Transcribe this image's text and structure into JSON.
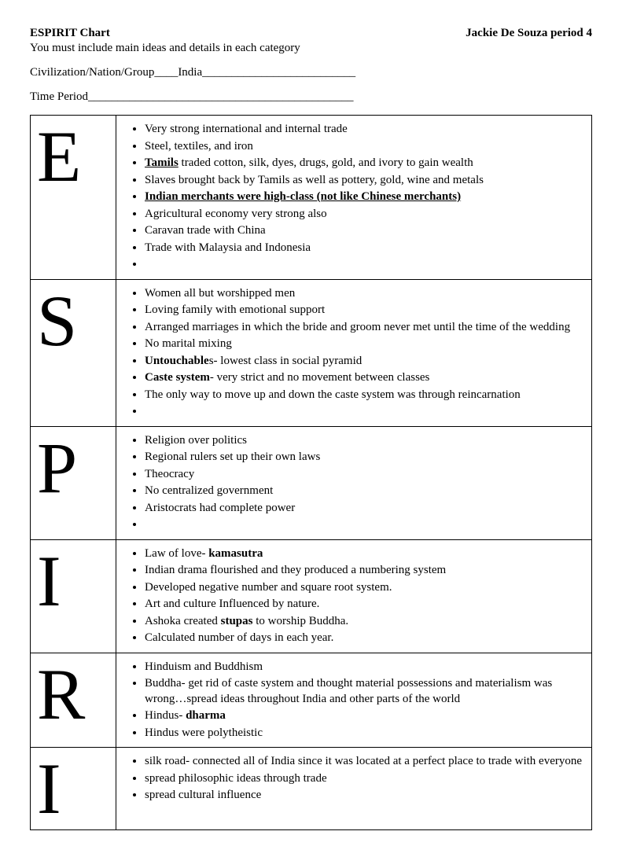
{
  "header": {
    "title": "ESPIRIT Chart",
    "name": "Jackie De Souza period 4",
    "instruction": "You must include main ideas and details in each category",
    "civ_label": "Civilization/Nation/Group____India__________________________",
    "time_label": "Time Period_____________________________________________"
  },
  "rows": [
    {
      "letter": "E",
      "items": [
        {
          "text": "Very strong international and internal trade"
        },
        {
          "text": "Steel, textiles, and iron"
        },
        {
          "html": "<span class='bu'>Tamils</span> traded cotton, silk, dyes, drugs, gold, and ivory to gain wealth"
        },
        {
          "text": "Slaves brought back by Tamils as well as pottery, gold, wine and metals"
        },
        {
          "html": "<span class='bu'>Indian merchants were high-class (not like Chinese merchants)</span>"
        },
        {
          "text": "Agricultural economy very strong also"
        },
        {
          "text": "Caravan trade with China"
        },
        {
          "text": "Trade with Malaysia and Indonesia"
        },
        {
          "text": ""
        }
      ]
    },
    {
      "letter": "S",
      "items": [
        {
          "text": "Women all but worshipped men"
        },
        {
          "text": "Loving family with emotional support"
        },
        {
          "text": "Arranged marriages in which the bride and groom never met until the time of the wedding"
        },
        {
          "text": "No marital mixing"
        },
        {
          "html": "<span class='bold'>Untouchable</span>s- lowest class in social pyramid"
        },
        {
          "html": "<span class='bold'>Caste system</span>- very strict and no movement between classes"
        },
        {
          "text": "The only way to move up and down the caste system was through reincarnation"
        },
        {
          "text": ""
        }
      ]
    },
    {
      "letter": "P",
      "items": [
        {
          "text": "Religion over politics"
        },
        {
          "text": "Regional rulers set up their own laws"
        },
        {
          "text": "Theocracy"
        },
        {
          "text": "No centralized government"
        },
        {
          "text": "Aristocrats had complete power"
        },
        {
          "text": ""
        }
      ]
    },
    {
      "letter": "I",
      "items": [
        {
          "html": "Law of love- <span class='bold'>kamasutra</span>"
        },
        {
          "text": "Indian drama flourished and they produced a numbering system"
        },
        {
          "text": "Developed negative number and square root system."
        },
        {
          "text": "Art and culture Influenced by nature."
        },
        {
          "html": "Ashoka created <span class='bold'>stupas</span> to worship Buddha."
        },
        {
          "text": "Calculated number of days in each year."
        }
      ]
    },
    {
      "letter": "R",
      "items": [
        {
          "text": "Hinduism and Buddhism"
        },
        {
          "text": "Buddha- get rid of caste system and thought material possessions and materialism was wrong…spread ideas throughout India and other parts of the world"
        },
        {
          "html": "Hindus- <span class='bold'>dharma</span>"
        },
        {
          "text": "Hindus were polytheistic"
        }
      ]
    },
    {
      "letter": "I",
      "items": [
        {
          "text": "silk road- connected all of India since it was located at a perfect place to trade with everyone"
        },
        {
          "text": "spread philosophic ideas through trade"
        },
        {
          "text": "spread cultural influence"
        }
      ]
    }
  ]
}
